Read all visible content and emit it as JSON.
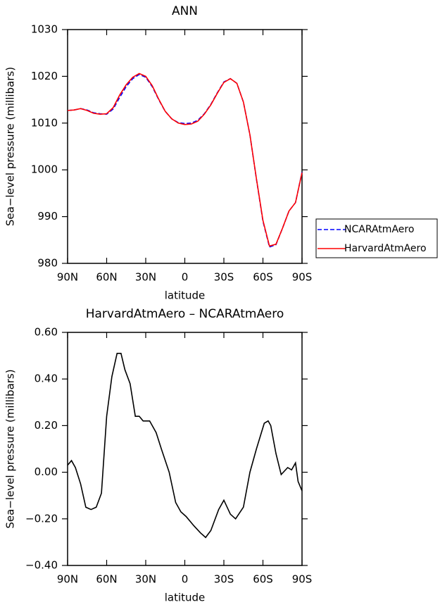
{
  "chart_data": [
    {
      "type": "line",
      "title": "ANN",
      "x_label": "latitude",
      "y_label": "Sea−level pressure (millibars)",
      "x": [
        90,
        85,
        80,
        75,
        70,
        65,
        60,
        55,
        50,
        45,
        40,
        35,
        30,
        25,
        20,
        15,
        10,
        5,
        0,
        -5,
        -10,
        -15,
        -20,
        -25,
        -30,
        -35,
        -40,
        -45,
        -50,
        -55,
        -60,
        -65,
        -70,
        -75,
        -80,
        -85,
        -90
      ],
      "series": [
        {
          "name": "NCARAtmAero",
          "color": "#0000ff",
          "linestyle": "dashed",
          "values": [
            1012.7,
            1012.8,
            1013.1,
            1012.8,
            1012.2,
            1012.0,
            1011.9,
            1013.0,
            1015.5,
            1017.8,
            1019.5,
            1020.4,
            1019.8,
            1017.8,
            1015.0,
            1012.5,
            1010.9,
            1010.1,
            1009.9,
            1010.0,
            1010.6,
            1012.0,
            1014.0,
            1016.5,
            1018.8,
            1019.5,
            1018.5,
            1014.5,
            1007.5,
            998,
            989,
            983.5,
            984,
            987.5,
            991.2,
            993,
            999.5
          ]
        },
        {
          "name": "HarvardAtmAero",
          "color": "#ff0000",
          "linestyle": "solid",
          "values": [
            1012.7,
            1012.8,
            1013.1,
            1012.7,
            1012.1,
            1011.9,
            1012.0,
            1013.3,
            1016.0,
            1018.2,
            1019.8,
            1020.6,
            1020.0,
            1018.0,
            1015.1,
            1012.5,
            1010.9,
            1010.0,
            1009.7,
            1009.8,
            1010.4,
            1011.9,
            1013.9,
            1016.4,
            1018.7,
            1019.5,
            1018.5,
            1014.5,
            1007.5,
            998.1,
            989.2,
            983.7,
            984.1,
            987.5,
            991.2,
            993,
            999.4
          ]
        }
      ],
      "xlim": [
        90,
        -90
      ],
      "xticks": [
        {
          "value": 90,
          "label": "90N"
        },
        {
          "value": 60,
          "label": "60N"
        },
        {
          "value": 30,
          "label": "30N"
        },
        0,
        {
          "value": -30,
          "label": "30S"
        },
        {
          "value": -60,
          "label": "60S"
        },
        {
          "value": -90,
          "label": "90S"
        }
      ],
      "ylim": [
        980,
        1030
      ],
      "yticks": [
        980,
        990,
        1000,
        1010,
        1020,
        1030
      ],
      "legend": "right"
    },
    {
      "type": "line",
      "title": "HarvardAtmAero – NCARAtmAero",
      "x_label": "latitude",
      "y_label": "Sea−level pressure (millibars)",
      "x": [
        90,
        87,
        84,
        80,
        76,
        72,
        68,
        64,
        60,
        56,
        52,
        49,
        46,
        42,
        38,
        35,
        32,
        27,
        22,
        18,
        12,
        7,
        3,
        -1,
        -7,
        -12,
        -16,
        -20,
        -26,
        -30,
        -35,
        -39,
        -45,
        -50,
        -55,
        -61,
        -64,
        -66,
        -70,
        -74,
        -79,
        -82,
        -85,
        -87,
        -90
      ],
      "series": [
        {
          "color": "#000000",
          "linestyle": "solid",
          "values": [
            0.03,
            0.05,
            0.02,
            -0.05,
            -0.15,
            -0.16,
            -0.15,
            -0.09,
            0.24,
            0.41,
            0.51,
            0.51,
            0.44,
            0.38,
            0.24,
            0.24,
            0.22,
            0.22,
            0.17,
            0.1,
            0.0,
            -0.13,
            -0.17,
            -0.19,
            -0.23,
            -0.26,
            -0.28,
            -0.25,
            -0.16,
            -0.12,
            -0.18,
            -0.2,
            -0.15,
            0.0,
            0.1,
            0.21,
            0.22,
            0.2,
            0.08,
            -0.01,
            0.02,
            0.01,
            0.04,
            -0.04,
            -0.08
          ]
        }
      ],
      "xlim": [
        90,
        -90
      ],
      "xticks": [
        {
          "value": 90,
          "label": "90N"
        },
        {
          "value": 60,
          "label": "60N"
        },
        {
          "value": 30,
          "label": "30N"
        },
        0,
        {
          "value": -30,
          "label": "30S"
        },
        {
          "value": -60,
          "label": "60S"
        },
        {
          "value": -90,
          "label": "90S"
        }
      ],
      "ylim": [
        -0.4,
        0.6
      ],
      "yticks": [
        {
          "value": -0.4,
          "label": "−0.40"
        },
        {
          "value": -0.2,
          "label": "−0.20"
        },
        {
          "value": 0,
          "label": "0.00"
        },
        {
          "value": 0.2,
          "label": "0.20"
        },
        {
          "value": 0.4,
          "label": "0.40"
        },
        {
          "value": 0.6,
          "label": "0.60"
        }
      ]
    }
  ]
}
